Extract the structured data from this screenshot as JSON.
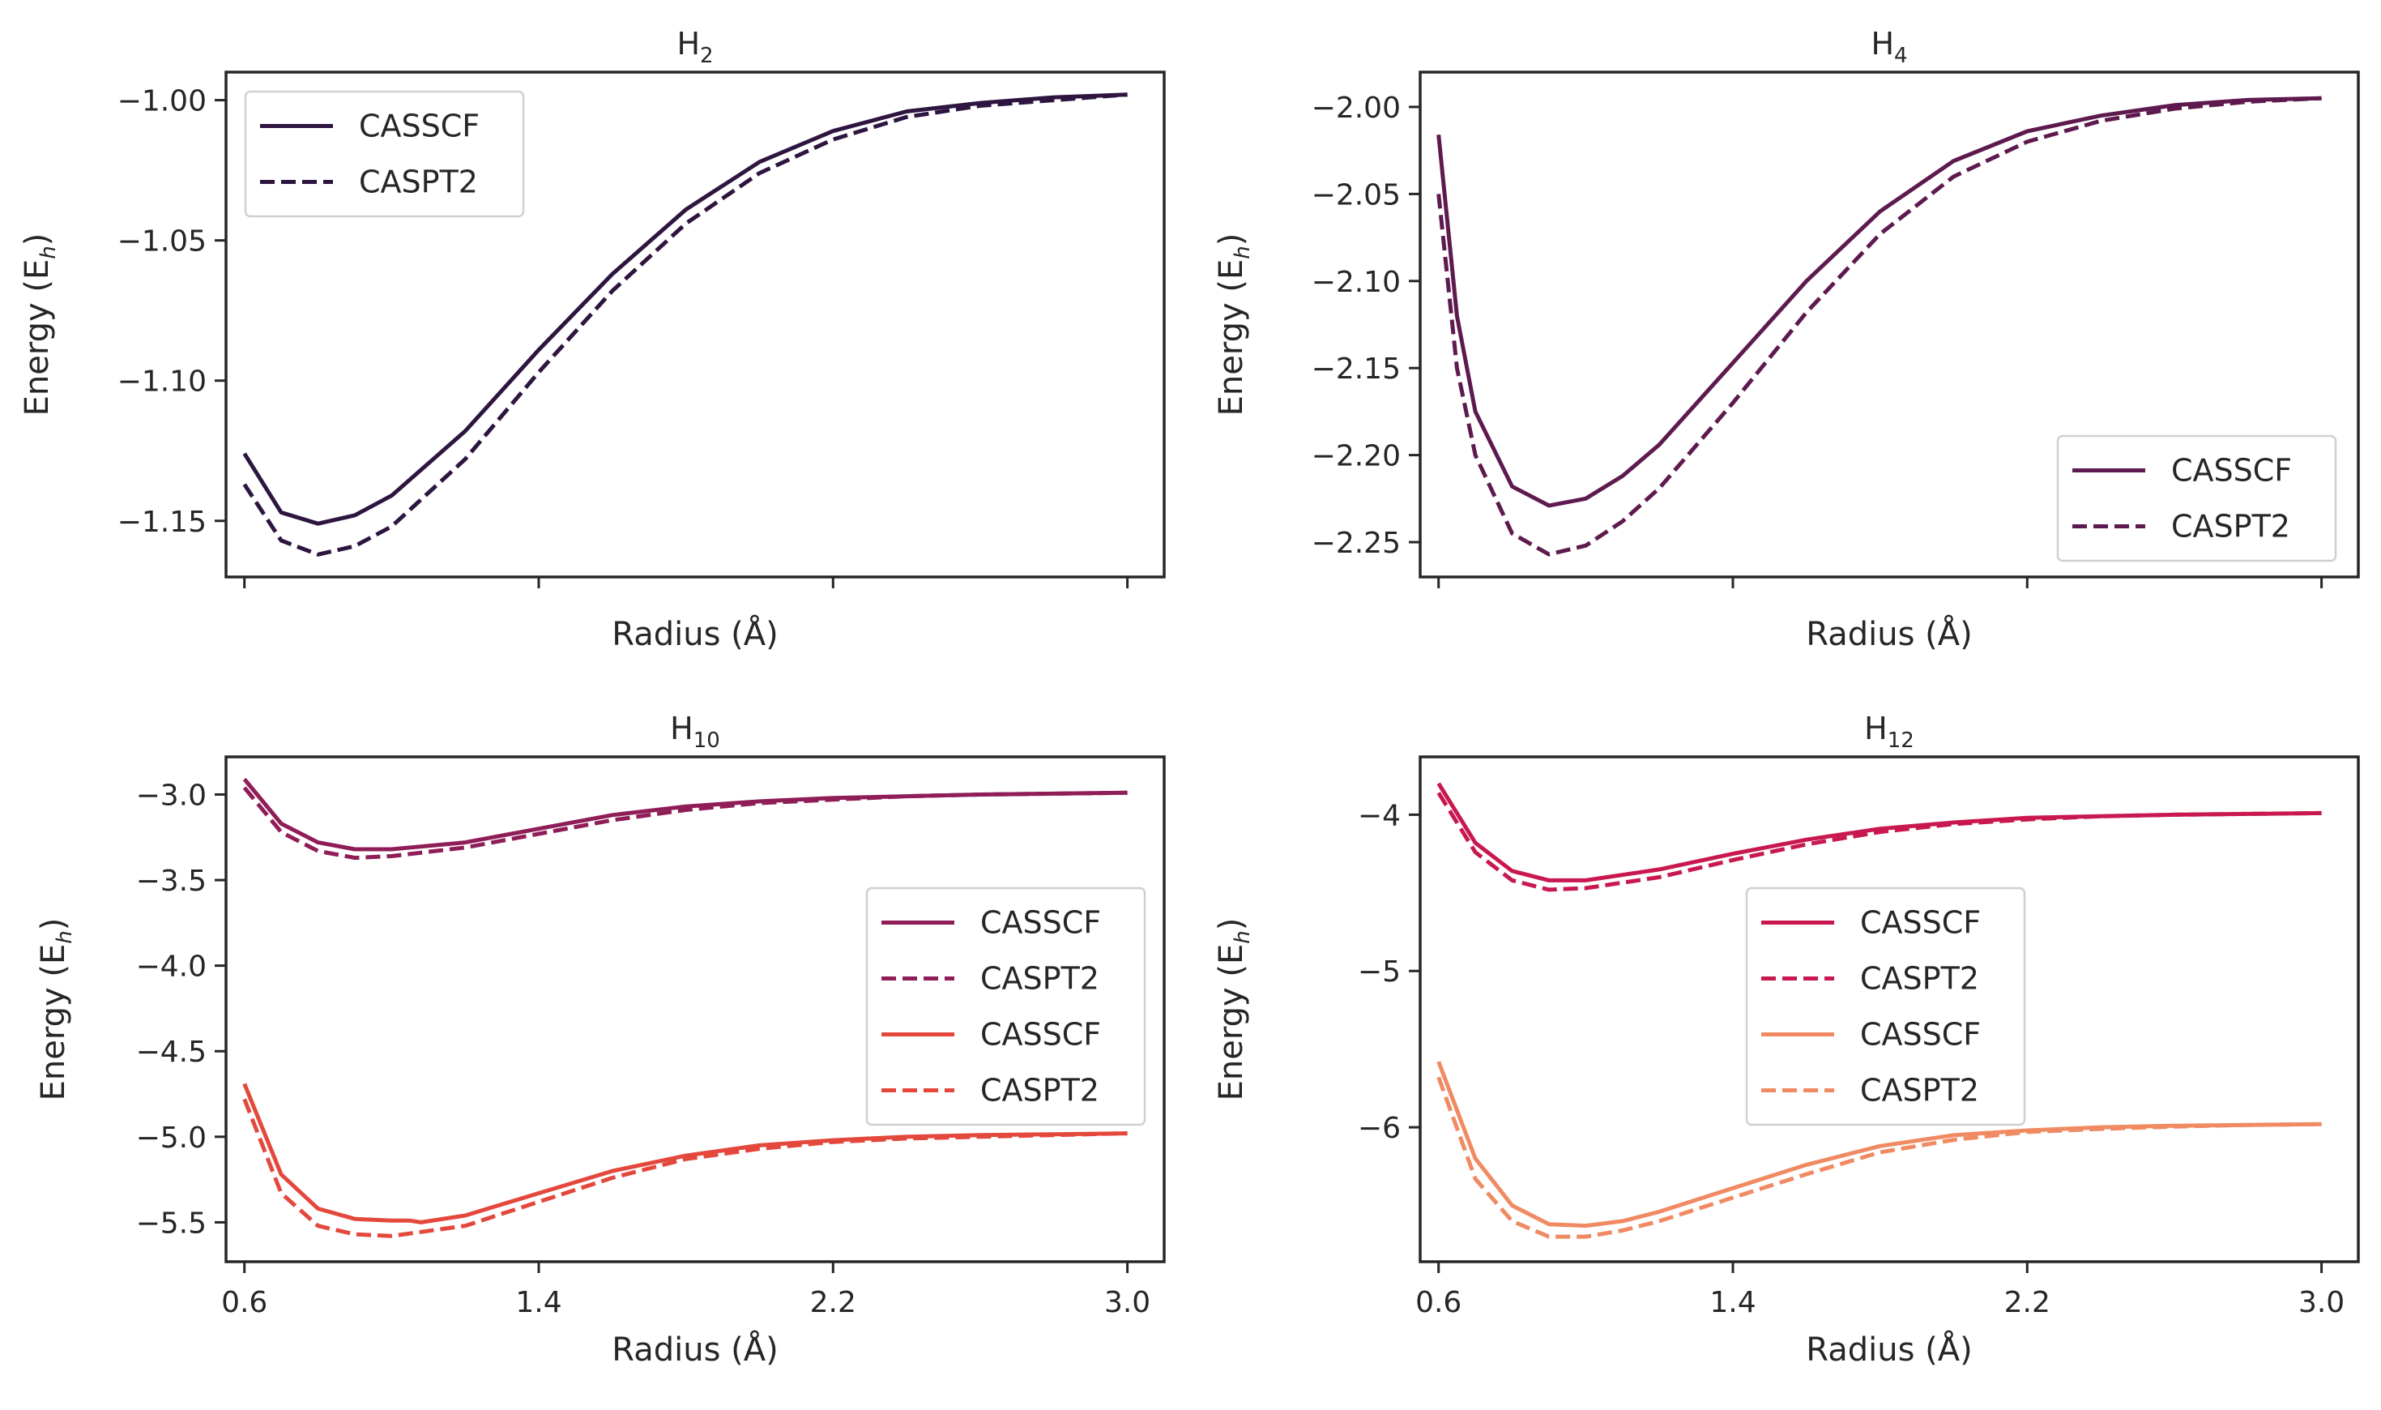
{
  "chart_data": [
    {
      "type": "line",
      "title": "H",
      "title_sub": "2",
      "xlabel": "Radius (Å)",
      "ylabel": "Energy (E",
      "ylabel_sub": "h",
      "ylabel_end": ")",
      "xlim": [
        0.55,
        3.1
      ],
      "ylim": [
        -1.17,
        -0.99
      ],
      "x_ticks": [
        0.6,
        1.4,
        2.2,
        3.0
      ],
      "x_tick_labels": [
        "",
        "",
        "",
        ""
      ],
      "y_ticks": [
        -1.15,
        -1.1,
        -1.05,
        -1.0
      ],
      "y_tick_labels": [
        "−1.15",
        "−1.10",
        "−1.05",
        "−1.00"
      ],
      "legend": "upper left",
      "grid": false,
      "series": [
        {
          "name": "CASSCF",
          "color": "#2d1540",
          "style": "solid",
          "x": [
            0.6,
            0.7,
            0.8,
            0.9,
            1.0,
            1.2,
            1.4,
            1.6,
            1.8,
            2.0,
            2.2,
            2.4,
            2.6,
            2.8,
            3.0
          ],
          "y": [
            -1.126,
            -1.147,
            -1.151,
            -1.148,
            -1.141,
            -1.118,
            -1.089,
            -1.062,
            -1.039,
            -1.022,
            -1.011,
            -1.004,
            -1.001,
            -0.999,
            -0.998
          ]
        },
        {
          "name": "CASPT2",
          "color": "#2d1540",
          "style": "dashed",
          "x": [
            0.6,
            0.7,
            0.8,
            0.9,
            1.0,
            1.2,
            1.4,
            1.6,
            1.8,
            2.0,
            2.2,
            2.4,
            2.6,
            2.8,
            3.0
          ],
          "y": [
            -1.137,
            -1.157,
            -1.162,
            -1.159,
            -1.152,
            -1.128,
            -1.097,
            -1.068,
            -1.044,
            -1.026,
            -1.014,
            -1.006,
            -1.002,
            -1.0,
            -0.998
          ]
        }
      ]
    },
    {
      "type": "line",
      "title": "H",
      "title_sub": "4",
      "xlabel": "Radius (Å)",
      "ylabel": "Energy (E",
      "ylabel_sub": "h",
      "ylabel_end": ")",
      "xlim": [
        0.55,
        3.1
      ],
      "ylim": [
        -2.27,
        -1.98
      ],
      "x_ticks": [
        0.6,
        1.4,
        2.2,
        3.0
      ],
      "x_tick_labels": [
        "",
        "",
        "",
        ""
      ],
      "y_ticks": [
        -2.25,
        -2.2,
        -2.15,
        -2.1,
        -2.05,
        -2.0
      ],
      "y_tick_labels": [
        "−2.25",
        "−2.20",
        "−2.15",
        "−2.10",
        "−2.05",
        "−2.00"
      ],
      "legend": "lower right",
      "grid": false,
      "series": [
        {
          "name": "CASSCF",
          "color": "#5e1a4e",
          "style": "solid",
          "x": [
            0.6,
            0.65,
            0.7,
            0.8,
            0.9,
            1.0,
            1.1,
            1.2,
            1.4,
            1.6,
            1.8,
            2.0,
            2.2,
            2.4,
            2.6,
            2.8,
            3.0
          ],
          "y": [
            -2.016,
            -2.12,
            -2.175,
            -2.218,
            -2.229,
            -2.225,
            -2.212,
            -2.194,
            -2.147,
            -2.1,
            -2.06,
            -2.031,
            -2.014,
            -2.005,
            -1.999,
            -1.996,
            -1.995
          ]
        },
        {
          "name": "CASPT2",
          "color": "#5e1a4e",
          "style": "dashed",
          "x": [
            0.6,
            0.65,
            0.7,
            0.8,
            0.9,
            1.0,
            1.1,
            1.2,
            1.4,
            1.6,
            1.8,
            2.0,
            2.2,
            2.4,
            2.6,
            2.8,
            3.0
          ],
          "y": [
            -2.05,
            -2.15,
            -2.2,
            -2.245,
            -2.257,
            -2.252,
            -2.238,
            -2.219,
            -2.17,
            -2.118,
            -2.073,
            -2.04,
            -2.02,
            -2.008,
            -2.001,
            -1.997,
            -1.995
          ]
        }
      ]
    },
    {
      "type": "line",
      "title": "H",
      "title_sub": "10",
      "xlabel": "Radius (Å)",
      "ylabel": "Energy (E",
      "ylabel_sub": "h",
      "ylabel_end": ")",
      "xlim": [
        0.55,
        3.1
      ],
      "ylim": [
        -5.73,
        -2.78
      ],
      "x_ticks": [
        0.6,
        1.4,
        2.2,
        3.0
      ],
      "x_tick_labels": [
        "0.6",
        "1.4",
        "2.2",
        "3.0"
      ],
      "y_ticks": [
        -5.5,
        -5.0,
        -4.5,
        -4.0,
        -3.5,
        -3.0
      ],
      "y_tick_labels": [
        "−5.5",
        "−5.0",
        "−4.5",
        "−4.0",
        "−3.5",
        "−3.0"
      ],
      "legend": "center right",
      "grid": false,
      "series": [
        {
          "name": "CASSCF",
          "color": "#8f1d57",
          "style": "solid",
          "x": [
            0.6,
            0.7,
            0.8,
            0.9,
            1.0,
            1.2,
            1.4,
            1.6,
            1.8,
            2.0,
            2.2,
            2.4,
            2.6,
            2.8,
            3.0
          ],
          "y": [
            -2.91,
            -3.17,
            -3.28,
            -3.32,
            -3.32,
            -3.28,
            -3.2,
            -3.12,
            -3.07,
            -3.04,
            -3.02,
            -3.01,
            -3.0,
            -2.995,
            -2.99
          ]
        },
        {
          "name": "CASPT2",
          "color": "#8f1d57",
          "style": "dashed",
          "x": [
            0.6,
            0.7,
            0.8,
            0.9,
            1.0,
            1.2,
            1.4,
            1.6,
            1.8,
            2.0,
            2.2,
            2.4,
            2.6,
            2.8,
            3.0
          ],
          "y": [
            -2.96,
            -3.22,
            -3.33,
            -3.37,
            -3.36,
            -3.31,
            -3.23,
            -3.15,
            -3.09,
            -3.05,
            -3.03,
            -3.01,
            -3.0,
            -2.995,
            -2.99
          ]
        },
        {
          "name": "CASSCF",
          "color": "#e4483c",
          "style": "solid",
          "x": [
            0.6,
            0.7,
            0.8,
            0.9,
            1.0,
            1.05,
            1.08,
            1.2,
            1.4,
            1.6,
            1.8,
            2.0,
            2.2,
            2.4,
            2.6,
            2.8,
            3.0
          ],
          "y": [
            -4.69,
            -5.22,
            -5.42,
            -5.48,
            -5.49,
            -5.49,
            -5.5,
            -5.46,
            -5.33,
            -5.2,
            -5.11,
            -5.05,
            -5.02,
            -5.0,
            -4.99,
            -4.985,
            -4.98
          ]
        },
        {
          "name": "CASPT2",
          "color": "#e4483c",
          "style": "dashed",
          "x": [
            0.6,
            0.7,
            0.8,
            0.9,
            1.0,
            1.2,
            1.4,
            1.6,
            1.8,
            2.0,
            2.2,
            2.4,
            2.6,
            2.8,
            3.0
          ],
          "y": [
            -4.78,
            -5.33,
            -5.52,
            -5.57,
            -5.58,
            -5.52,
            -5.38,
            -5.24,
            -5.13,
            -5.07,
            -5.03,
            -5.01,
            -5.0,
            -4.99,
            -4.98
          ]
        }
      ]
    },
    {
      "type": "line",
      "title": "H",
      "title_sub": "12",
      "xlabel": "Radius (Å)",
      "ylabel": "Energy (E",
      "ylabel_sub": "h",
      "ylabel_end": ")",
      "xlim": [
        0.55,
        3.1
      ],
      "ylim": [
        -6.86,
        -3.63
      ],
      "x_ticks": [
        0.6,
        1.4,
        2.2,
        3.0
      ],
      "x_tick_labels": [
        "0.6",
        "1.4",
        "2.2",
        "3.0"
      ],
      "y_ticks": [
        -6,
        -5,
        -4
      ],
      "y_tick_labels": [
        "−6",
        "−5",
        "−4"
      ],
      "legend": "center",
      "grid": false,
      "series": [
        {
          "name": "CASSCF",
          "color": "#c8184f",
          "style": "solid",
          "x": [
            0.6,
            0.7,
            0.8,
            0.9,
            1.0,
            1.2,
            1.4,
            1.6,
            1.8,
            2.0,
            2.2,
            2.4,
            2.6,
            2.8,
            3.0
          ],
          "y": [
            -3.8,
            -4.18,
            -4.36,
            -4.42,
            -4.42,
            -4.35,
            -4.25,
            -4.16,
            -4.09,
            -4.05,
            -4.02,
            -4.01,
            -4.0,
            -3.995,
            -3.99
          ]
        },
        {
          "name": "CASPT2",
          "color": "#c8184f",
          "style": "dashed",
          "x": [
            0.6,
            0.7,
            0.8,
            0.9,
            1.0,
            1.2,
            1.4,
            1.6,
            1.8,
            2.0,
            2.2,
            2.4,
            2.6,
            2.8,
            3.0
          ],
          "y": [
            -3.86,
            -4.24,
            -4.42,
            -4.48,
            -4.47,
            -4.4,
            -4.29,
            -4.19,
            -4.11,
            -4.06,
            -4.03,
            -4.01,
            -4.0,
            -3.995,
            -3.99
          ]
        },
        {
          "name": "CASSCF",
          "color": "#f08a62",
          "style": "solid",
          "x": [
            0.6,
            0.7,
            0.8,
            0.9,
            1.0,
            1.1,
            1.2,
            1.4,
            1.6,
            1.8,
            2.0,
            2.2,
            2.4,
            2.6,
            2.8,
            3.0
          ],
          "y": [
            -5.58,
            -6.2,
            -6.5,
            -6.62,
            -6.63,
            -6.6,
            -6.54,
            -6.39,
            -6.24,
            -6.12,
            -6.05,
            -6.02,
            -6.0,
            -5.99,
            -5.985,
            -5.98
          ]
        },
        {
          "name": "CASPT2",
          "color": "#f08a62",
          "style": "dashed",
          "x": [
            0.6,
            0.7,
            0.8,
            0.9,
            1.0,
            1.1,
            1.2,
            1.4,
            1.6,
            1.8,
            2.0,
            2.2,
            2.4,
            2.6,
            2.8,
            3.0
          ],
          "y": [
            -5.68,
            -6.33,
            -6.6,
            -6.7,
            -6.7,
            -6.66,
            -6.6,
            -6.45,
            -6.3,
            -6.16,
            -6.08,
            -6.03,
            -6.01,
            -5.995,
            -5.985,
            -5.98
          ]
        }
      ]
    }
  ]
}
